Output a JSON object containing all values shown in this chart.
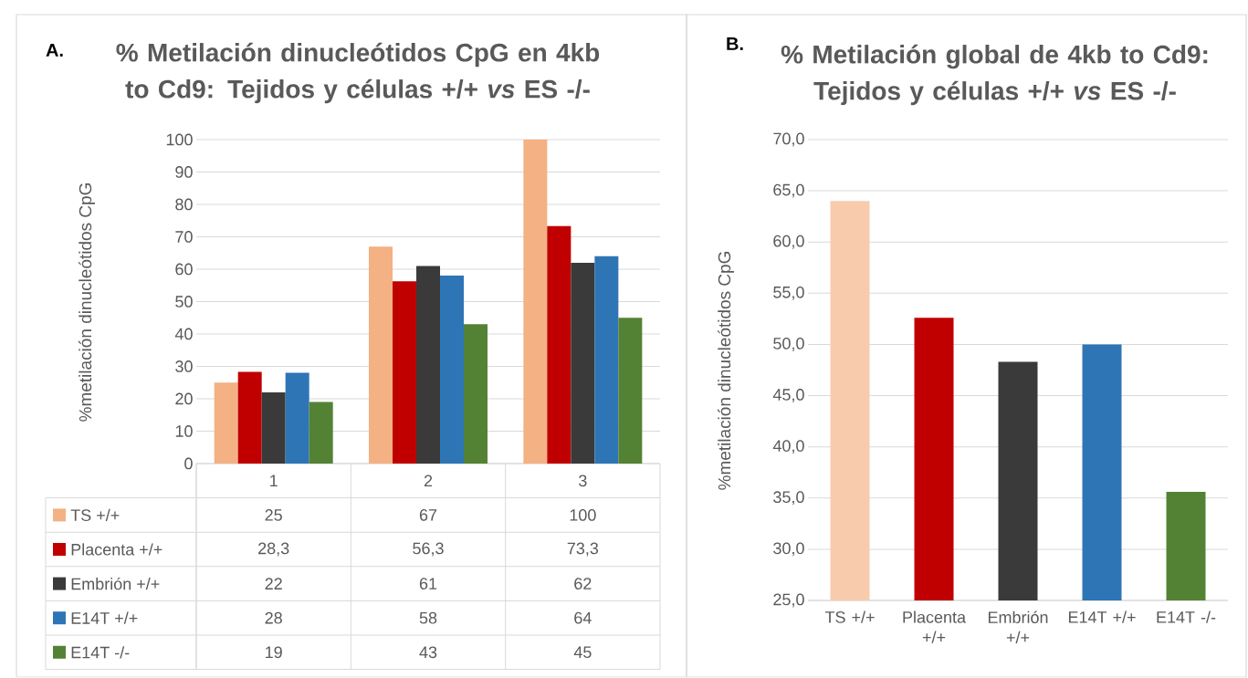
{
  "chart_data": [
    {
      "type": "bar",
      "title": "% Metilación dinucleótidos CpG en 4kb to Cd9: Tejidos y células +/+ *vs* ES -/-",
      "ylabel": "%metilación dinucleótidos CpG",
      "annotations": [
        "A."
      ],
      "categories": [
        "1",
        "2",
        "3"
      ],
      "series": [
        {
          "name": "TS +/+",
          "color": "#f4b183",
          "values": [
            25,
            67,
            100
          ],
          "value_labels": [
            "25",
            "67",
            "100"
          ]
        },
        {
          "name": "Placenta +/+",
          "color": "#c00000",
          "values": [
            28.3,
            56.3,
            73.3
          ],
          "value_labels": [
            "28,3",
            "56,3",
            "73,3"
          ]
        },
        {
          "name": "Embrión +/+",
          "color": "#3a3a3a",
          "values": [
            22,
            61,
            62
          ],
          "value_labels": [
            "22",
            "61",
            "62"
          ]
        },
        {
          "name": "E14T +/+",
          "color": "#2e75b6",
          "values": [
            28,
            58,
            64
          ],
          "value_labels": [
            "28",
            "58",
            "64"
          ]
        },
        {
          "name": "E14T -/-",
          "color": "#548235",
          "values": [
            19,
            43,
            45
          ],
          "value_labels": [
            "19",
            "43",
            "45"
          ]
        }
      ],
      "ylim": [
        0,
        100
      ],
      "yticks": [
        0,
        10,
        20,
        30,
        40,
        50,
        60,
        70,
        80,
        90,
        100
      ],
      "grid": "y",
      "legend": "bottom"
    },
    {
      "type": "bar",
      "title": "% Metilación global de 4kb to Cd9: Tejidos y células +/+ *vs* ES -/-",
      "ylabel": "%metilación dinucleótidos CpG",
      "annotations": [
        "B."
      ],
      "categories": [
        "TS +/+",
        "Placenta +/+",
        "Embrión +/+",
        "E14T +/+",
        "E14T -/-"
      ],
      "values": [
        64.0,
        52.6,
        48.3,
        50.0,
        35.6
      ],
      "colors": [
        "#f8cbad",
        "#c00000",
        "#3a3a3a",
        "#2e75b6",
        "#548235"
      ],
      "ylim": [
        25,
        70
      ],
      "yticks": [
        {
          "value": 25,
          "label": "25,0"
        },
        {
          "value": 30,
          "label": "30,0"
        },
        {
          "value": 35,
          "label": "35,0"
        },
        {
          "value": 40,
          "label": "40,0"
        },
        {
          "value": 45,
          "label": "45,0"
        },
        {
          "value": 50,
          "label": "50,0"
        },
        {
          "value": 55,
          "label": "55,0"
        },
        {
          "value": 60,
          "label": "60,0"
        },
        {
          "value": 65,
          "label": "65,0"
        },
        {
          "value": 70,
          "label": "70,0"
        }
      ],
      "grid": "y"
    }
  ]
}
